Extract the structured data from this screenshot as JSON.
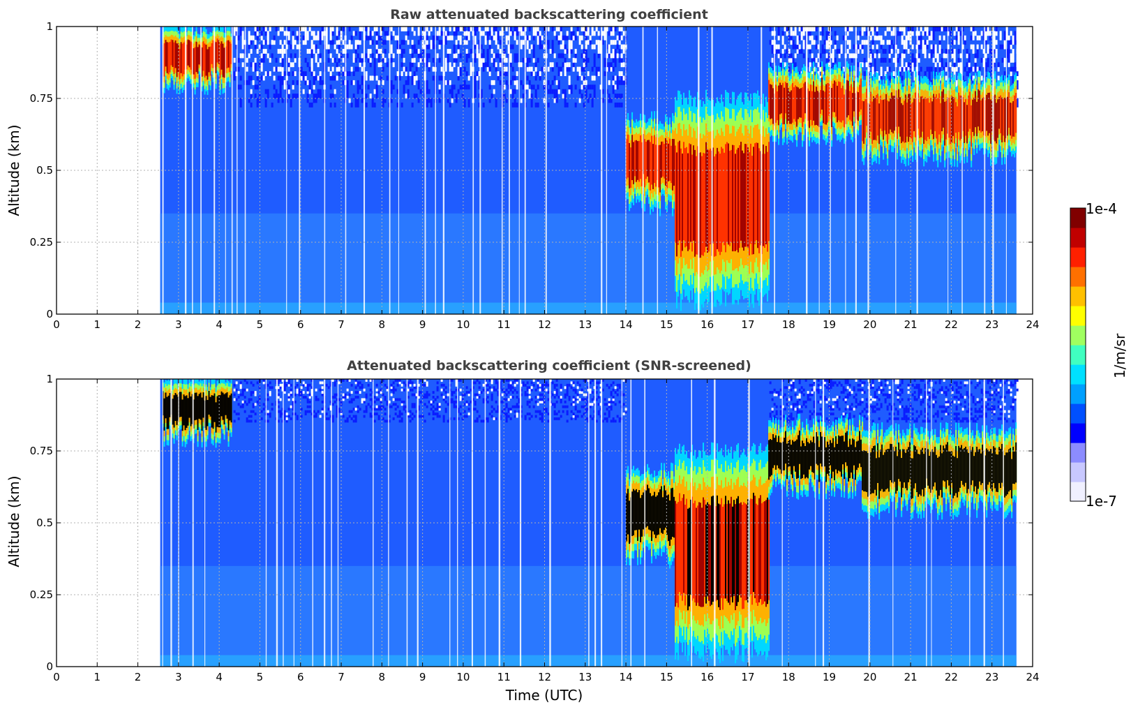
{
  "chart_data": [
    {
      "type": "heatmap",
      "title": "Raw attenuated backscattering coefficient",
      "xlabel": "",
      "ylabel": "Altitude (km)",
      "xlim": [
        0,
        24
      ],
      "ylim": [
        0,
        1
      ],
      "x_ticks": [
        "0",
        "1",
        "2",
        "3",
        "4",
        "5",
        "6",
        "7",
        "8",
        "9",
        "10",
        "11",
        "12",
        "13",
        "14",
        "15",
        "16",
        "17",
        "18",
        "19",
        "20",
        "21",
        "22",
        "23",
        "24"
      ],
      "y_ticks": [
        "0",
        "0.25",
        "0.5",
        "0.75",
        "1"
      ],
      "grid": true,
      "data_coverage_hours": [
        2.55,
        23.6
      ],
      "dense_layers": [
        {
          "t_start": 2.6,
          "t_end": 4.3,
          "base_km": 0.8,
          "top_km": 1.0
        },
        {
          "t_start": 14.0,
          "t_end": 15.2,
          "base_km": 0.38,
          "top_km": 0.68
        },
        {
          "t_start": 15.2,
          "t_end": 17.5,
          "base_km": 0.05,
          "top_km": 0.75
        },
        {
          "t_start": 17.5,
          "t_end": 19.8,
          "base_km": 0.62,
          "top_km": 0.85
        },
        {
          "t_start": 19.8,
          "t_end": 23.6,
          "base_km": 0.55,
          "top_km": 0.82
        }
      ]
    },
    {
      "type": "heatmap",
      "title": "Attenuated backscattering coefficient (SNR-screened)",
      "xlabel": "Time (UTC)",
      "ylabel": "Altitude (km)",
      "xlim": [
        0,
        24
      ],
      "ylim": [
        0,
        1
      ],
      "x_ticks": [
        "0",
        "1",
        "2",
        "3",
        "4",
        "5",
        "6",
        "7",
        "8",
        "9",
        "10",
        "11",
        "12",
        "13",
        "14",
        "15",
        "16",
        "17",
        "18",
        "19",
        "20",
        "21",
        "22",
        "23",
        "24"
      ],
      "y_ticks": [
        "0",
        "0.25",
        "0.5",
        "0.75",
        "1"
      ],
      "grid": true,
      "data_coverage_hours": [
        2.55,
        23.6
      ],
      "dense_layers": [
        {
          "t_start": 2.6,
          "t_end": 4.3,
          "base_km": 0.8,
          "top_km": 1.0
        },
        {
          "t_start": 14.0,
          "t_end": 15.2,
          "base_km": 0.38,
          "top_km": 0.68
        },
        {
          "t_start": 15.2,
          "t_end": 17.5,
          "base_km": 0.05,
          "top_km": 0.75
        },
        {
          "t_start": 17.5,
          "t_end": 19.8,
          "base_km": 0.62,
          "top_km": 0.85
        },
        {
          "t_start": 19.8,
          "t_end": 23.6,
          "base_km": 0.55,
          "top_km": 0.82
        }
      ]
    }
  ],
  "colorbar": {
    "label": "1/m/sr",
    "max_label": "1e-4",
    "min_label": "1e-7",
    "colors": [
      "#f0f0ff",
      "#c8c8ff",
      "#8c8cff",
      "#0000ff",
      "#0050ff",
      "#00a0ff",
      "#00e0ff",
      "#40ffc0",
      "#a0ff60",
      "#ffff00",
      "#ffc000",
      "#ff7000",
      "#ff2000",
      "#c00000",
      "#800000"
    ]
  }
}
